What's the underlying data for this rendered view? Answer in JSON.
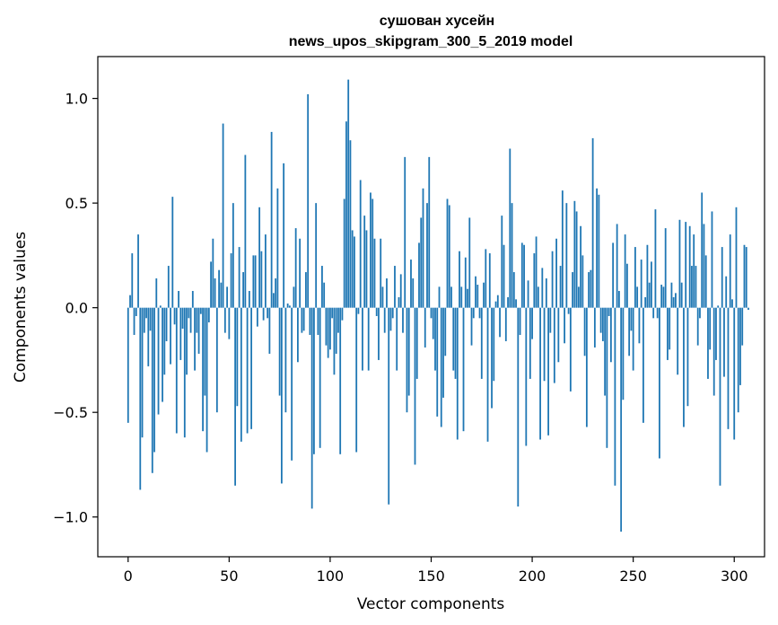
{
  "chart_data": {
    "type": "bar",
    "title_line1": "сушован хусейн",
    "title_line2": "news_upos_skipgram_300_5_2019 model",
    "xlabel": "Vector components",
    "ylabel": "Components values",
    "xlim": [
      -15,
      315
    ],
    "ylim": [
      -1.19,
      1.2
    ],
    "x_ticks": [
      0,
      50,
      100,
      150,
      200,
      250,
      300
    ],
    "x_tick_labels": [
      "0",
      "50",
      "100",
      "150",
      "200",
      "250",
      "300"
    ],
    "y_ticks": [
      -1.0,
      -0.5,
      0.0,
      0.5,
      1.0
    ],
    "y_tick_labels": [
      "−1.0",
      "−0.5",
      "0.0",
      "0.5",
      "1.0"
    ],
    "bar_color": "#1f77b4",
    "grid": false,
    "legend": "none",
    "values": [
      -0.55,
      0.06,
      0.26,
      -0.13,
      -0.04,
      0.35,
      -0.87,
      -0.62,
      -0.12,
      -0.05,
      -0.28,
      -0.11,
      -0.79,
      -0.69,
      0.14,
      -0.51,
      0.01,
      -0.45,
      -0.32,
      -0.16,
      0.2,
      -0.27,
      0.53,
      -0.08,
      -0.6,
      0.08,
      -0.25,
      -0.1,
      -0.62,
      -0.32,
      -0.05,
      -0.12,
      0.08,
      -0.3,
      -0.12,
      -0.22,
      -0.03,
      -0.59,
      -0.42,
      -0.69,
      -0.07,
      0.22,
      0.33,
      0.14,
      -0.5,
      0.18,
      0.12,
      0.88,
      -0.12,
      0.1,
      -0.15,
      0.26,
      0.5,
      -0.85,
      -0.47,
      0.29,
      -0.64,
      0.17,
      0.73,
      -0.6,
      0.08,
      -0.58,
      0.25,
      0.25,
      -0.09,
      0.48,
      0.27,
      -0.06,
      0.35,
      -0.05,
      -0.22,
      0.84,
      0.07,
      0.14,
      0.57,
      -0.42,
      -0.84,
      0.69,
      -0.5,
      0.02,
      0.01,
      -0.73,
      0.1,
      0.38,
      -0.26,
      0.33,
      -0.12,
      -0.11,
      0.17,
      1.02,
      -0.13,
      -0.96,
      -0.7,
      0.5,
      -0.13,
      -0.67,
      0.2,
      0.12,
      -0.18,
      -0.24,
      -0.2,
      -0.05,
      -0.32,
      -0.22,
      -0.12,
      -0.7,
      -0.06,
      0.52,
      0.89,
      1.09,
      0.8,
      0.37,
      0.34,
      -0.69,
      -0.03,
      0.61,
      -0.3,
      0.44,
      0.37,
      -0.3,
      0.55,
      0.52,
      0.33,
      -0.04,
      -0.25,
      0.33,
      0.1,
      -0.12,
      0.14,
      -0.94,
      -0.11,
      -0.05,
      0.2,
      -0.3,
      0.05,
      0.16,
      -0.12,
      0.72,
      -0.5,
      -0.42,
      0.23,
      0.14,
      -0.75,
      -0.34,
      0.31,
      0.43,
      0.57,
      -0.19,
      0.5,
      0.72,
      -0.05,
      -0.15,
      -0.3,
      -0.52,
      0.1,
      -0.57,
      -0.43,
      -0.23,
      0.52,
      0.49,
      0.1,
      -0.3,
      -0.34,
      -0.63,
      0.27,
      0.1,
      -0.59,
      0.24,
      0.09,
      0.43,
      -0.18,
      -0.05,
      0.15,
      0.11,
      -0.05,
      -0.34,
      0.12,
      0.28,
      -0.64,
      0.26,
      -0.48,
      -0.35,
      0.03,
      0.06,
      -0.14,
      0.44,
      0.3,
      -0.16,
      0.05,
      0.76,
      0.5,
      0.17,
      0.04,
      -0.95,
      -0.13,
      0.31,
      0.3,
      -0.66,
      0.13,
      -0.34,
      -0.15,
      0.26,
      0.34,
      0.1,
      -0.63,
      0.19,
      -0.35,
      0.14,
      -0.61,
      -0.12,
      0.27,
      -0.36,
      0.33,
      -0.26,
      0.2,
      0.56,
      -0.17,
      0.5,
      -0.03,
      -0.4,
      0.17,
      0.51,
      0.46,
      0.1,
      0.39,
      0.25,
      -0.23,
      -0.57,
      0.17,
      0.18,
      0.81,
      -0.19,
      0.57,
      0.54,
      -0.12,
      -0.16,
      -0.42,
      -0.67,
      -0.04,
      -0.26,
      0.31,
      -0.85,
      0.4,
      0.08,
      -1.07,
      -0.44,
      0.35,
      0.21,
      -0.23,
      -0.11,
      -0.3,
      0.29,
      0.1,
      -0.17,
      0.23,
      -0.55,
      0.05,
      0.3,
      0.12,
      0.22,
      -0.05,
      0.47,
      -0.05,
      -0.72,
      0.11,
      0.1,
      0.38,
      -0.25,
      -0.2,
      0.12,
      0.05,
      0.07,
      -0.32,
      0.42,
      0.12,
      -0.57,
      0.41,
      -0.47,
      0.39,
      0.2,
      0.35,
      0.2,
      -0.18,
      -0.05,
      0.55,
      0.4,
      0.25,
      -0.34,
      -0.2,
      0.46,
      -0.42,
      -0.25,
      0.01,
      -0.85,
      0.29,
      -0.33,
      0.15,
      -0.58,
      0.35,
      0.04,
      -0.63,
      0.48,
      -0.5,
      -0.37,
      -0.18,
      0.3,
      0.29,
      -0.01
    ]
  }
}
